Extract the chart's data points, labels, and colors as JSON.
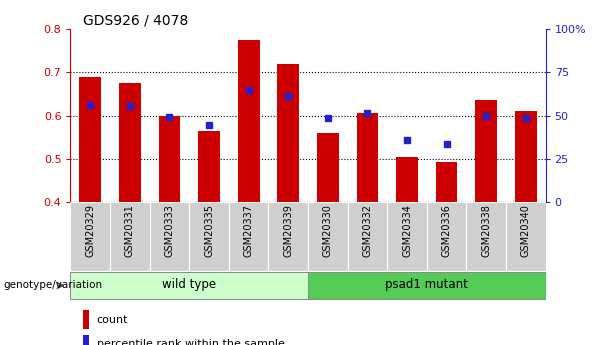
{
  "title": "GDS926 / 4078",
  "categories": [
    "GSM20329",
    "GSM20331",
    "GSM20333",
    "GSM20335",
    "GSM20337",
    "GSM20339",
    "GSM20330",
    "GSM20332",
    "GSM20334",
    "GSM20336",
    "GSM20338",
    "GSM20340"
  ],
  "red_tops": [
    0.69,
    0.675,
    0.6,
    0.565,
    0.775,
    0.72,
    0.56,
    0.605,
    0.505,
    0.492,
    0.635,
    0.61
  ],
  "blue_y": [
    0.625,
    0.623,
    0.597,
    0.578,
    0.66,
    0.645,
    0.595,
    0.607,
    0.543,
    0.535,
    0.6,
    0.594
  ],
  "bar_bottom": 0.4,
  "ylim": [
    0.4,
    0.8
  ],
  "yticks_left": [
    0.4,
    0.5,
    0.6,
    0.7,
    0.8
  ],
  "yticks_right": [
    0,
    25,
    50,
    75,
    100
  ],
  "group1_label": "wild type",
  "group2_label": "psad1 mutant",
  "group1_count": 6,
  "group2_count": 6,
  "red_color": "#cc0000",
  "blue_color": "#2222cc",
  "bar_width": 0.55,
  "grid_color": "black",
  "tick_bg_color": "#d0d0d0",
  "group1_bg": "#ccffcc",
  "group2_bg": "#55cc55",
  "legend_red_label": "count",
  "legend_blue_label": "percentile rank within the sample",
  "blue_marker_size": 5
}
